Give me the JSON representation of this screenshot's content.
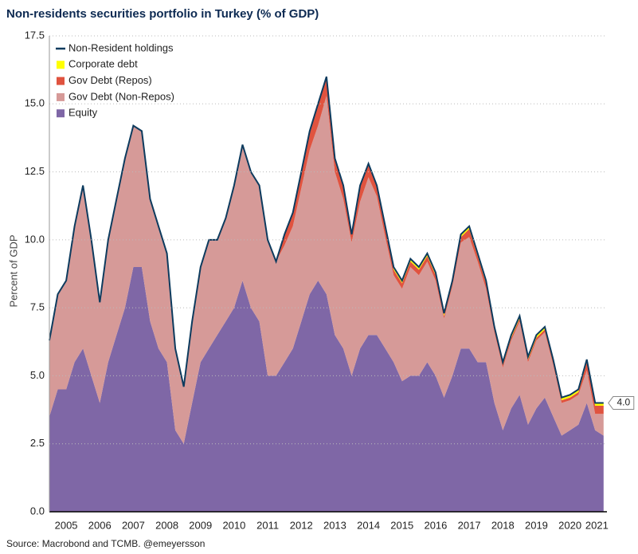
{
  "chart_data": {
    "type": "area",
    "title": "Non-residents securities portfolio in Turkey (% of GDP)",
    "y_label": "Percent of GDP",
    "source": "Source: Macrobond and TCMB. @emeyersson",
    "xlim": [
      2005,
      2021.6
    ],
    "xticks": [
      {
        "value": 2005.5,
        "label": "2005"
      },
      {
        "value": 2006.5,
        "label": "2006"
      },
      {
        "value": 2007.5,
        "label": "2007"
      },
      {
        "value": 2008.5,
        "label": "2008"
      },
      {
        "value": 2009.5,
        "label": "2009"
      },
      {
        "value": 2010.5,
        "label": "2010"
      },
      {
        "value": 2011.5,
        "label": "2011"
      },
      {
        "value": 2012.5,
        "label": "2012"
      },
      {
        "value": 2013.5,
        "label": "2013"
      },
      {
        "value": 2014.5,
        "label": "2014"
      },
      {
        "value": 2015.5,
        "label": "2015"
      },
      {
        "value": 2016.5,
        "label": "2016"
      },
      {
        "value": 2017.5,
        "label": "2017"
      },
      {
        "value": 2018.5,
        "label": "2018"
      },
      {
        "value": 2019.5,
        "label": "2019"
      },
      {
        "value": 2020.5,
        "label": "2020"
      },
      {
        "value": 2021.3,
        "label": "2021"
      }
    ],
    "ylim": [
      0,
      17.5
    ],
    "yticks": [
      {
        "value": 0,
        "label": "0.0"
      },
      {
        "value": 2.5,
        "label": "2.5"
      },
      {
        "value": 5,
        "label": "5.0"
      },
      {
        "value": 7.5,
        "label": "7.5"
      },
      {
        "value": 10,
        "label": "10.0"
      },
      {
        "value": 12.5,
        "label": "12.5"
      },
      {
        "value": 15,
        "label": "15.0"
      },
      {
        "value": 17.5,
        "label": "17.5"
      }
    ],
    "grid": true,
    "legend": "top-left",
    "x": [
      2005,
      2005.25,
      2005.5,
      2005.75,
      2006,
      2006.25,
      2006.5,
      2006.75,
      2007,
      2007.25,
      2007.5,
      2007.75,
      2008,
      2008.25,
      2008.5,
      2008.75,
      2009,
      2009.25,
      2009.5,
      2009.75,
      2010,
      2010.25,
      2010.5,
      2010.75,
      2011,
      2011.25,
      2011.5,
      2011.75,
      2012,
      2012.25,
      2012.5,
      2012.75,
      2013,
      2013.25,
      2013.5,
      2013.75,
      2014,
      2014.25,
      2014.5,
      2014.75,
      2015,
      2015.25,
      2015.5,
      2015.75,
      2016,
      2016.25,
      2016.5,
      2016.75,
      2017,
      2017.25,
      2017.5,
      2017.75,
      2018,
      2018.25,
      2018.5,
      2018.75,
      2019,
      2019.25,
      2019.5,
      2019.75,
      2020,
      2020.25,
      2020.5,
      2020.75,
      2021,
      2021.25,
      2021.5
    ],
    "series": [
      {
        "name": "Non-Resident holdings",
        "type": "line",
        "color": "#0d3b5e",
        "values": [
          6.3,
          8.0,
          8.5,
          10.5,
          12.0,
          10.0,
          7.7,
          10.0,
          11.5,
          13.0,
          14.2,
          14.0,
          11.5,
          10.5,
          9.5,
          6.0,
          4.6,
          7.0,
          9.0,
          10.0,
          10.0,
          10.8,
          12.0,
          13.5,
          12.5,
          12.0,
          10.0,
          9.2,
          10.2,
          11.0,
          12.5,
          14.0,
          15.0,
          16.0,
          13.0,
          12.0,
          10.2,
          12.0,
          12.8,
          12.0,
          10.5,
          9.0,
          8.5,
          9.3,
          9.0,
          9.5,
          8.8,
          7.3,
          8.5,
          10.2,
          10.5,
          9.5,
          8.5,
          6.8,
          5.5,
          6.5,
          7.2,
          5.7,
          6.5,
          6.8,
          5.6,
          4.2,
          4.3,
          4.5,
          5.6,
          4.0,
          4.0
        ],
        "value_labels": [
          null,
          null,
          null,
          null,
          null,
          null,
          null,
          null,
          null,
          null,
          null,
          null,
          null,
          null,
          null,
          null,
          null,
          null,
          null,
          null,
          null,
          null,
          null,
          null,
          null,
          null,
          null,
          null,
          null,
          null,
          null,
          null,
          null,
          null,
          null,
          null,
          null,
          null,
          null,
          null,
          null,
          null,
          null,
          null,
          null,
          null,
          null,
          null,
          null,
          null,
          null,
          null,
          null,
          null,
          null,
          null,
          null,
          null,
          null,
          null,
          null,
          null,
          null,
          null,
          null,
          null,
          "4.0"
        ]
      },
      {
        "name": "Corporate debt",
        "type": "area",
        "color": "#ffff00",
        "values": [
          0,
          0,
          0,
          0,
          0,
          0,
          0,
          0,
          0,
          0,
          0,
          0,
          0,
          0,
          0,
          0,
          0,
          0,
          0,
          0,
          0,
          0,
          0,
          0,
          0,
          0,
          0,
          0,
          0,
          0,
          0,
          0,
          0,
          0,
          0,
          0,
          0,
          0,
          0,
          0,
          0.1,
          0.1,
          0.1,
          0.1,
          0.1,
          0.1,
          0.1,
          0.1,
          0.1,
          0.1,
          0.1,
          0.1,
          0.1,
          0.1,
          0.1,
          0.1,
          0.1,
          0.1,
          0.1,
          0.1,
          0.1,
          0.1,
          0.1,
          0.1,
          0.1,
          0.1,
          0.1
        ]
      },
      {
        "name": "Gov Debt (Repos)",
        "type": "area",
        "color": "#e0533f",
        "values": [
          0,
          0,
          0,
          0,
          0,
          0,
          0,
          0,
          0,
          0,
          0,
          0,
          0,
          0,
          0,
          0,
          0,
          0,
          0,
          0,
          0,
          0,
          0,
          0,
          0,
          0,
          0,
          0,
          0.4,
          0.5,
          0.6,
          0.7,
          0.8,
          0.7,
          0.5,
          0.5,
          0.3,
          0.6,
          0.5,
          0.4,
          0.3,
          0.2,
          0.2,
          0.2,
          0.2,
          0.2,
          0.2,
          0.1,
          0.1,
          0.2,
          0.3,
          0.2,
          0.2,
          0.1,
          0.1,
          0.1,
          0.1,
          0.1,
          0.1,
          0.1,
          0.1,
          0.1,
          0.1,
          0.1,
          0.3,
          0.3,
          0.3
        ]
      },
      {
        "name": "Gov Debt (Non-Repos)",
        "type": "area",
        "color": "#d69a98",
        "values": [
          2.8,
          3.5,
          4.0,
          5.0,
          6.0,
          5.0,
          3.7,
          4.5,
          5.0,
          5.5,
          5.2,
          5.0,
          4.5,
          4.5,
          4.0,
          3.0,
          2.1,
          3.0,
          3.5,
          4.0,
          3.5,
          3.8,
          4.5,
          5.0,
          5.0,
          5.0,
          5.0,
          4.2,
          4.3,
          4.5,
          4.9,
          5.3,
          5.7,
          7.3,
          6.0,
          5.5,
          4.9,
          5.4,
          5.8,
          5.1,
          4.1,
          3.2,
          3.4,
          4.0,
          3.7,
          3.7,
          3.5,
          2.9,
          3.3,
          3.9,
          4.1,
          3.7,
          2.7,
          2.6,
          2.3,
          2.5,
          2.7,
          2.3,
          2.5,
          2.4,
          1.9,
          1.2,
          1.1,
          1.1,
          1.2,
          0.6,
          0.8
        ]
      },
      {
        "name": "Equity",
        "type": "area",
        "color": "#7f67a6",
        "values": [
          3.5,
          4.5,
          4.5,
          5.5,
          6.0,
          5.0,
          4.0,
          5.5,
          6.5,
          7.5,
          9.0,
          9.0,
          7.0,
          6.0,
          5.5,
          3.0,
          2.5,
          4.0,
          5.5,
          6.0,
          6.5,
          7.0,
          7.5,
          8.5,
          7.5,
          7.0,
          5.0,
          5.0,
          5.5,
          6.0,
          7.0,
          8.0,
          8.5,
          8.0,
          6.5,
          6.0,
          5.0,
          6.0,
          6.5,
          6.5,
          6.0,
          5.5,
          4.8,
          5.0,
          5.0,
          5.5,
          5.0,
          4.2,
          5.0,
          6.0,
          6.0,
          5.5,
          5.5,
          4.0,
          3.0,
          3.8,
          4.3,
          3.2,
          3.8,
          4.2,
          3.5,
          2.8,
          3.0,
          3.2,
          4.0,
          3.0,
          2.8
        ]
      }
    ]
  }
}
